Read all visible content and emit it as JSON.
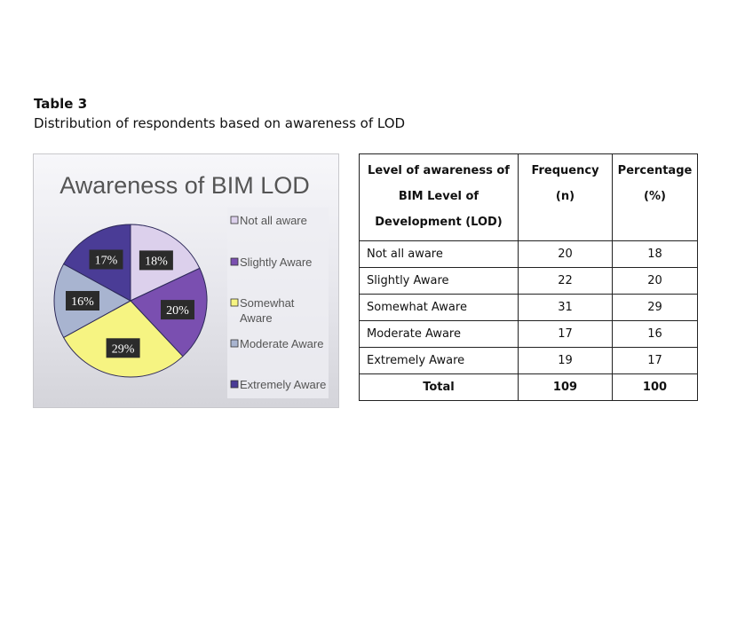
{
  "caption": {
    "label": "Table 3",
    "text": "Distribution of respondents based on awareness of LOD"
  },
  "chart_data": {
    "type": "pie",
    "title": "Awareness of BIM LOD",
    "categories": [
      "Not all aware",
      "Slightly Aware",
      "Somewhat Aware",
      "Moderate Aware",
      "Extremely Aware"
    ],
    "values": [
      18,
      20,
      29,
      16,
      17
    ],
    "labels": [
      "18%",
      "20%",
      "29%",
      "16%",
      "17%"
    ],
    "colors": [
      "#dcd0ec",
      "#7a4fb0",
      "#f6f482",
      "#a8b4d0",
      "#4a3c96"
    ],
    "legend_position": "right",
    "legend_lines": [
      [
        "Not all aware"
      ],
      [
        "Slightly Aware"
      ],
      [
        "Somewhat",
        "Aware"
      ],
      [
        "Moderate Aware"
      ],
      [
        "Extremely Aware"
      ]
    ]
  },
  "table": {
    "headers": [
      [
        "Level of awareness of",
        "BIM Level of",
        "Development (LOD)"
      ],
      [
        "Frequency",
        "(n)"
      ],
      [
        "Percentage",
        "(%)"
      ]
    ],
    "rows": [
      [
        "Not all aware",
        "20",
        "18"
      ],
      [
        "Slightly Aware",
        "22",
        "20"
      ],
      [
        "Somewhat Aware",
        "31",
        "29"
      ],
      [
        "Moderate Aware",
        "17",
        "16"
      ],
      [
        "Extremely Aware",
        "19",
        "17"
      ]
    ],
    "total": [
      "Total",
      "109",
      "100"
    ]
  }
}
